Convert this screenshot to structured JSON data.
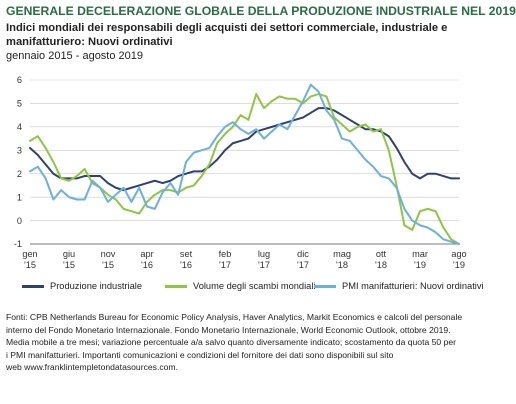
{
  "header": {
    "title": "GENERALE DECELERAZIONE GLOBALE DELLA PRODUZIONE INDUSTRIALE NEL 2019",
    "subtitle": "Indici mondiali dei responsabili degli acquisti dei settori commerciale, industriale e manifatturiero: Nuovi ordinativi",
    "period": "gennaio 2015 - agosto 2019"
  },
  "chart_data": {
    "type": "line",
    "title": "GENERALE DECELERAZIONE GLOBALE DELLA PRODUZIONE INDUSTRIALE NEL 2019",
    "ylim": [
      -1,
      6
    ],
    "yticks": [
      -1,
      0,
      1,
      2,
      3,
      4,
      5,
      6
    ],
    "x_ticks": [
      {
        "label": [
          "gen",
          "'15"
        ],
        "month_index": 0
      },
      {
        "label": [
          "giu",
          "'15"
        ],
        "month_index": 5
      },
      {
        "label": [
          "nov",
          "'15"
        ],
        "month_index": 10
      },
      {
        "label": [
          "apr",
          "'16"
        ],
        "month_index": 15
      },
      {
        "label": [
          "set",
          "'16"
        ],
        "month_index": 20
      },
      {
        "label": [
          "feb",
          "'17"
        ],
        "month_index": 25
      },
      {
        "label": [
          "lug",
          "'17"
        ],
        "month_index": 30
      },
      {
        "label": [
          "dic",
          "'17"
        ],
        "month_index": 35
      },
      {
        "label": [
          "mag",
          "'18"
        ],
        "month_index": 40
      },
      {
        "label": [
          "ott",
          "'18"
        ],
        "month_index": 45
      },
      {
        "label": [
          "mar",
          "'19"
        ],
        "month_index": 50
      },
      {
        "label": [
          "ago",
          "'19"
        ],
        "month_index": 55
      }
    ],
    "x_range": [
      0,
      55
    ],
    "grid": "horizontal",
    "legend_position": "bottom",
    "series": [
      {
        "name": "Produzione industriale",
        "color": "#2f4170",
        "values": [
          3.1,
          2.8,
          2.4,
          2.0,
          1.8,
          1.8,
          1.8,
          1.9,
          1.9,
          1.9,
          1.6,
          1.4,
          1.3,
          1.4,
          1.5,
          1.6,
          1.7,
          1.6,
          1.7,
          1.9,
          2.0,
          2.1,
          2.1,
          2.3,
          2.6,
          3.0,
          3.3,
          3.4,
          3.5,
          3.8,
          3.9,
          4.0,
          4.1,
          4.2,
          4.3,
          4.4,
          4.6,
          4.8,
          4.8,
          4.7,
          4.5,
          4.3,
          4.1,
          3.9,
          3.9,
          3.8,
          3.6,
          3.1,
          2.5,
          2.0,
          1.8,
          2.0,
          2.0,
          1.9,
          1.8,
          1.8
        ]
      },
      {
        "name": "Volume degli scambi mondiali",
        "color": "#8dc63f",
        "values": [
          3.4,
          3.6,
          3.1,
          2.5,
          1.8,
          1.7,
          1.9,
          2.2,
          1.6,
          1.4,
          1.1,
          0.9,
          0.5,
          0.4,
          0.3,
          0.8,
          1.1,
          1.3,
          1.3,
          1.2,
          1.4,
          1.5,
          1.9,
          2.4,
          3.3,
          3.7,
          4.0,
          4.5,
          4.3,
          5.4,
          4.8,
          5.1,
          5.3,
          5.2,
          5.2,
          5.0,
          5.3,
          5.4,
          5.3,
          4.4,
          4.1,
          3.8,
          4.0,
          4.1,
          3.8,
          3.9,
          3.0,
          1.5,
          -0.2,
          -0.4,
          0.4,
          0.5,
          0.4,
          -0.3,
          -0.8,
          -1.0
        ]
      },
      {
        "name": "PMI manifatturieri: Nuovi ordinativi",
        "color": "#6bb0de",
        "values": [
          2.1,
          2.3,
          1.8,
          0.9,
          1.3,
          1.0,
          0.9,
          0.9,
          1.7,
          1.4,
          0.8,
          1.1,
          1.4,
          0.8,
          1.4,
          0.6,
          0.5,
          1.2,
          1.6,
          1.1,
          2.5,
          2.9,
          3.0,
          3.1,
          3.6,
          4.0,
          4.2,
          3.9,
          3.7,
          3.9,
          3.5,
          3.8,
          4.1,
          3.9,
          4.5,
          5.1,
          5.8,
          5.5,
          4.7,
          4.3,
          3.5,
          3.4,
          3.0,
          2.6,
          2.3,
          1.9,
          1.8,
          1.4,
          0.5,
          0.0,
          -0.2,
          -0.3,
          -0.5,
          -0.8,
          -0.9,
          -1.0
        ]
      }
    ]
  },
  "legend": {
    "items": [
      {
        "label": "Produzione industriale",
        "color": "#2f4170"
      },
      {
        "label": "Volume degli scambi mondiali",
        "color": "#8dc63f"
      },
      {
        "label": "PMI manifatturieri: Nuovi ordinativi",
        "color": "#6bb0de"
      }
    ]
  },
  "footnote": {
    "lines": [
      "Fonti: CPB Netherlands Bureau for Economic Policy Analysis, Haver Analytics, Markit Economics e calcoli del personale",
      "interno del Fondo Monetario Internazionale. Fondo Monetario Internazionale, World Economic Outlook, ottobre 2019.",
      "Media mobile a tre mesi; variazione percentuale a/a salvo quanto diversamente indicato; scostamento da quota 50 per",
      "i PMI manifatturieri. Importanti comunicazioni e condizioni del fornitore dei dati sono disponibili sul sito",
      "web www.franklintempletondatasources.com."
    ]
  }
}
